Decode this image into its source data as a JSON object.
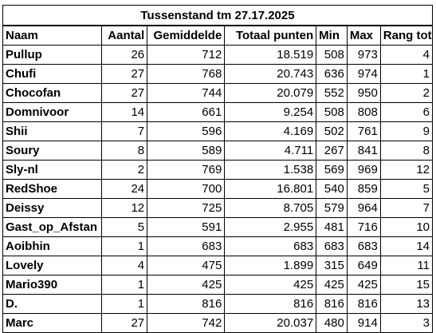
{
  "title": "Tussenstand tm 27.17.2025",
  "headers": {
    "naam": "Naam",
    "aantal": "Aantal",
    "gemiddelde": "Gemiddelde",
    "totaal": "Totaal punten",
    "min": "Min",
    "max": "Max",
    "rang": "Rang tot"
  },
  "rows": [
    {
      "naam": "Pullup",
      "aantal": "26",
      "gemiddelde": "712",
      "totaal": "18.519",
      "min": "508",
      "max": "973",
      "rang": "4"
    },
    {
      "naam": "Chufi",
      "aantal": "27",
      "gemiddelde": "768",
      "totaal": "20.743",
      "min": "636",
      "max": "974",
      "rang": "1"
    },
    {
      "naam": "Chocofan",
      "aantal": "27",
      "gemiddelde": "744",
      "totaal": "20.079",
      "min": "552",
      "max": "950",
      "rang": "2"
    },
    {
      "naam": "Domnivoor",
      "aantal": "14",
      "gemiddelde": "661",
      "totaal": "9.254",
      "min": "508",
      "max": "808",
      "rang": "6"
    },
    {
      "naam": "Shii",
      "aantal": "7",
      "gemiddelde": "596",
      "totaal": "4.169",
      "min": "502",
      "max": "761",
      "rang": "9"
    },
    {
      "naam": "Soury",
      "aantal": "8",
      "gemiddelde": "589",
      "totaal": "4.711",
      "min": "267",
      "max": "841",
      "rang": "8"
    },
    {
      "naam": "Sly-nl",
      "aantal": "2",
      "gemiddelde": "769",
      "totaal": "1.538",
      "min": "569",
      "max": "969",
      "rang": "12"
    },
    {
      "naam": "RedShoe",
      "aantal": "24",
      "gemiddelde": "700",
      "totaal": "16.801",
      "min": "540",
      "max": "859",
      "rang": "5"
    },
    {
      "naam": "Deissy",
      "aantal": "12",
      "gemiddelde": "725",
      "totaal": "8.705",
      "min": "579",
      "max": "964",
      "rang": "7"
    },
    {
      "naam": "Gast_op_Afstan",
      "aantal": "5",
      "gemiddelde": "591",
      "totaal": "2.955",
      "min": "481",
      "max": "716",
      "rang": "10"
    },
    {
      "naam": "Aoibhin",
      "aantal": "1",
      "gemiddelde": "683",
      "totaal": "683",
      "min": "683",
      "max": "683",
      "rang": "14"
    },
    {
      "naam": "Lovely",
      "aantal": "4",
      "gemiddelde": "475",
      "totaal": "1.899",
      "min": "315",
      "max": "649",
      "rang": "11"
    },
    {
      "naam": "Mario390",
      "aantal": "1",
      "gemiddelde": "425",
      "totaal": "425",
      "min": "425",
      "max": "425",
      "rang": "15"
    },
    {
      "naam": "D.",
      "aantal": "1",
      "gemiddelde": "816",
      "totaal": "816",
      "min": "816",
      "max": "816",
      "rang": "13"
    },
    {
      "naam": "Marc",
      "aantal": "27",
      "gemiddelde": "742",
      "totaal": "20.037",
      "min": "480",
      "max": "914",
      "rang": "3"
    }
  ]
}
